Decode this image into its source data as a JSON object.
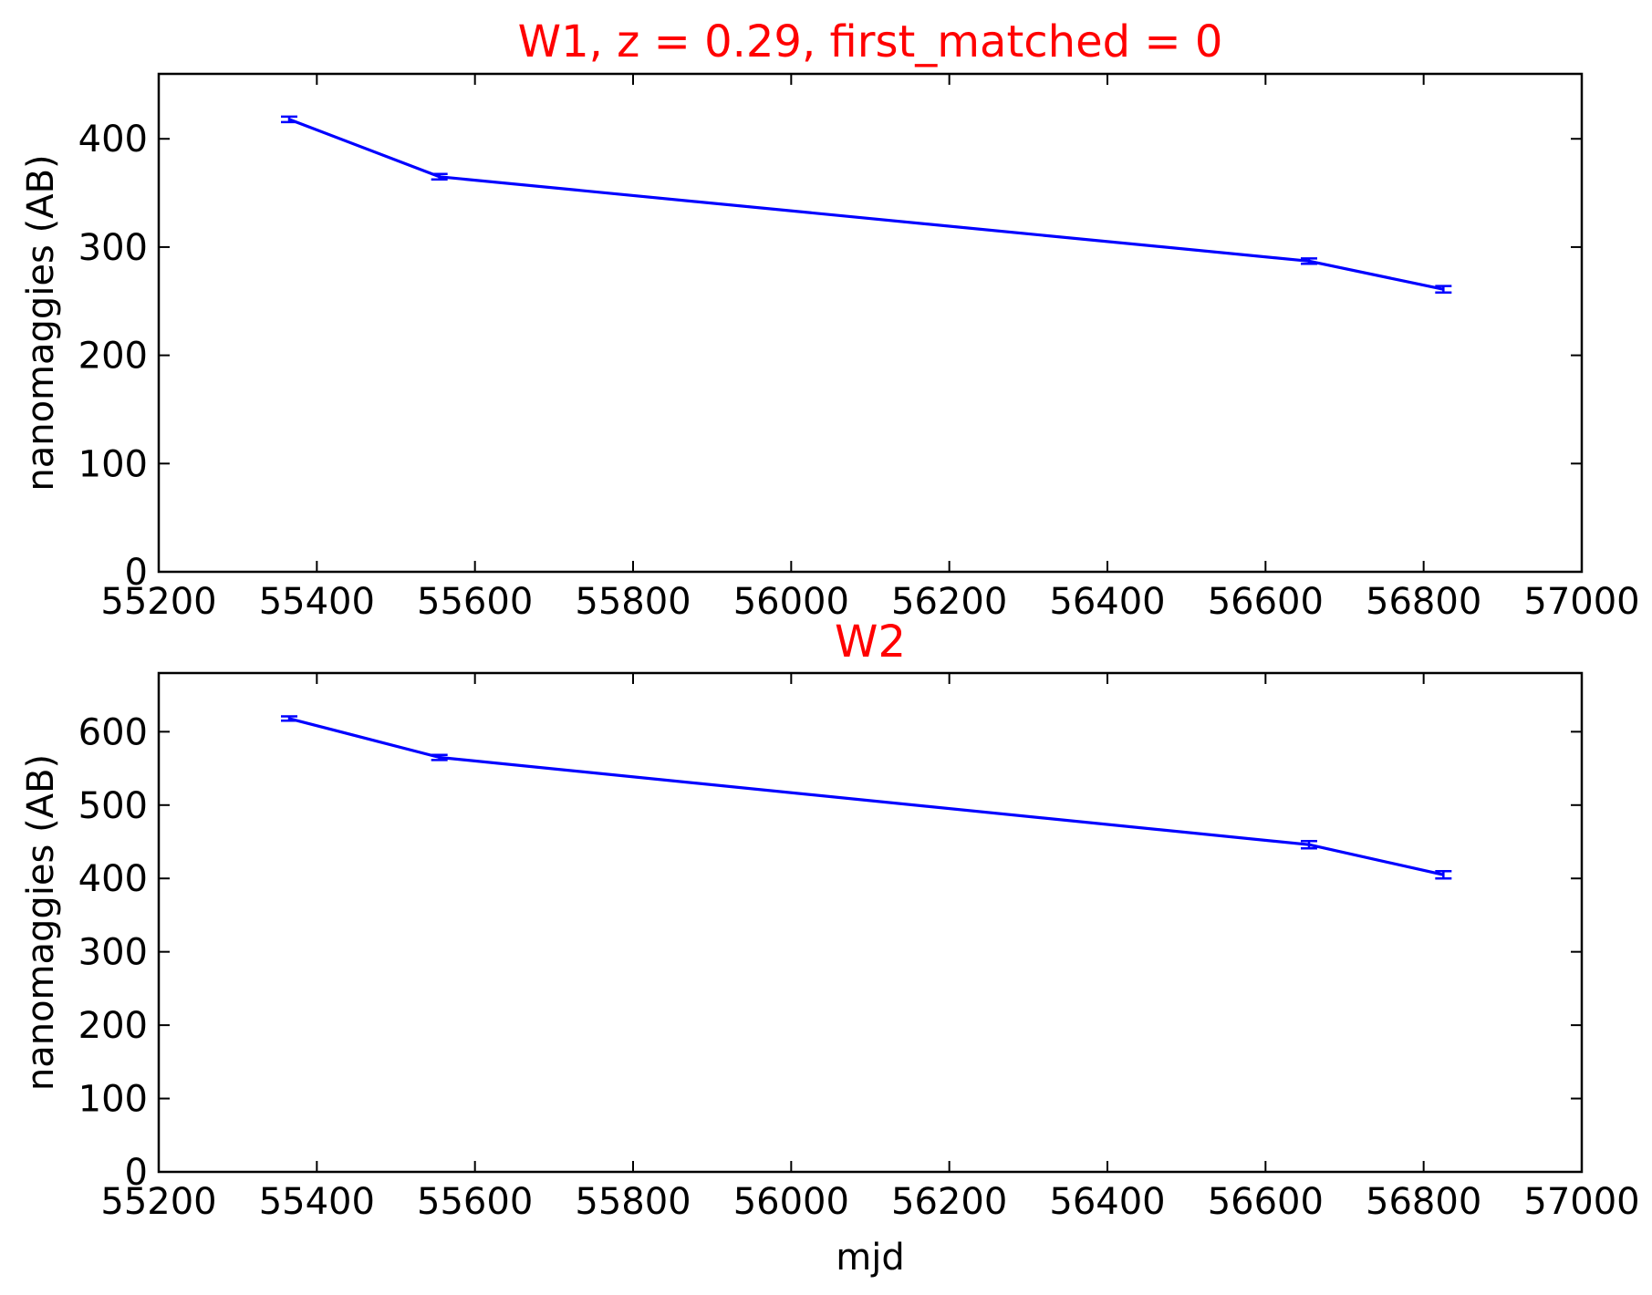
{
  "chart_data": [
    {
      "type": "line",
      "title": "W1, z = 0.29, first_matched = 0",
      "xlabel": "",
      "ylabel": "nanomaggies (AB)",
      "xlim": [
        55200,
        57000
      ],
      "ylim": [
        0,
        460
      ],
      "xticks": [
        "55200",
        "55400",
        "55600",
        "55800",
        "56000",
        "56200",
        "56400",
        "56600",
        "56800",
        "57000"
      ],
      "yticks": [
        "0",
        "100",
        "200",
        "300",
        "400"
      ],
      "grid": false,
      "series": [
        {
          "color": "#0000ff",
          "x": [
            55365,
            55555,
            56655,
            56825
          ],
          "y": [
            418,
            365,
            287,
            261
          ],
          "err": [
            2.5,
            2.5,
            2.5,
            3
          ]
        }
      ]
    },
    {
      "type": "line",
      "title": "W2",
      "xlabel": "mjd",
      "ylabel": "nanomaggies (AB)",
      "xlim": [
        55200,
        57000
      ],
      "ylim": [
        0,
        680
      ],
      "xticks": [
        "55200",
        "55400",
        "55600",
        "55800",
        "56000",
        "56200",
        "56400",
        "56600",
        "56800",
        "57000"
      ],
      "yticks": [
        "0",
        "100",
        "200",
        "300",
        "400",
        "500",
        "600"
      ],
      "grid": false,
      "series": [
        {
          "color": "#0000ff",
          "x": [
            55365,
            55555,
            56655,
            56825
          ],
          "y": [
            618,
            565,
            446,
            405
          ],
          "err": [
            3,
            3.5,
            5,
            5
          ]
        }
      ]
    }
  ]
}
